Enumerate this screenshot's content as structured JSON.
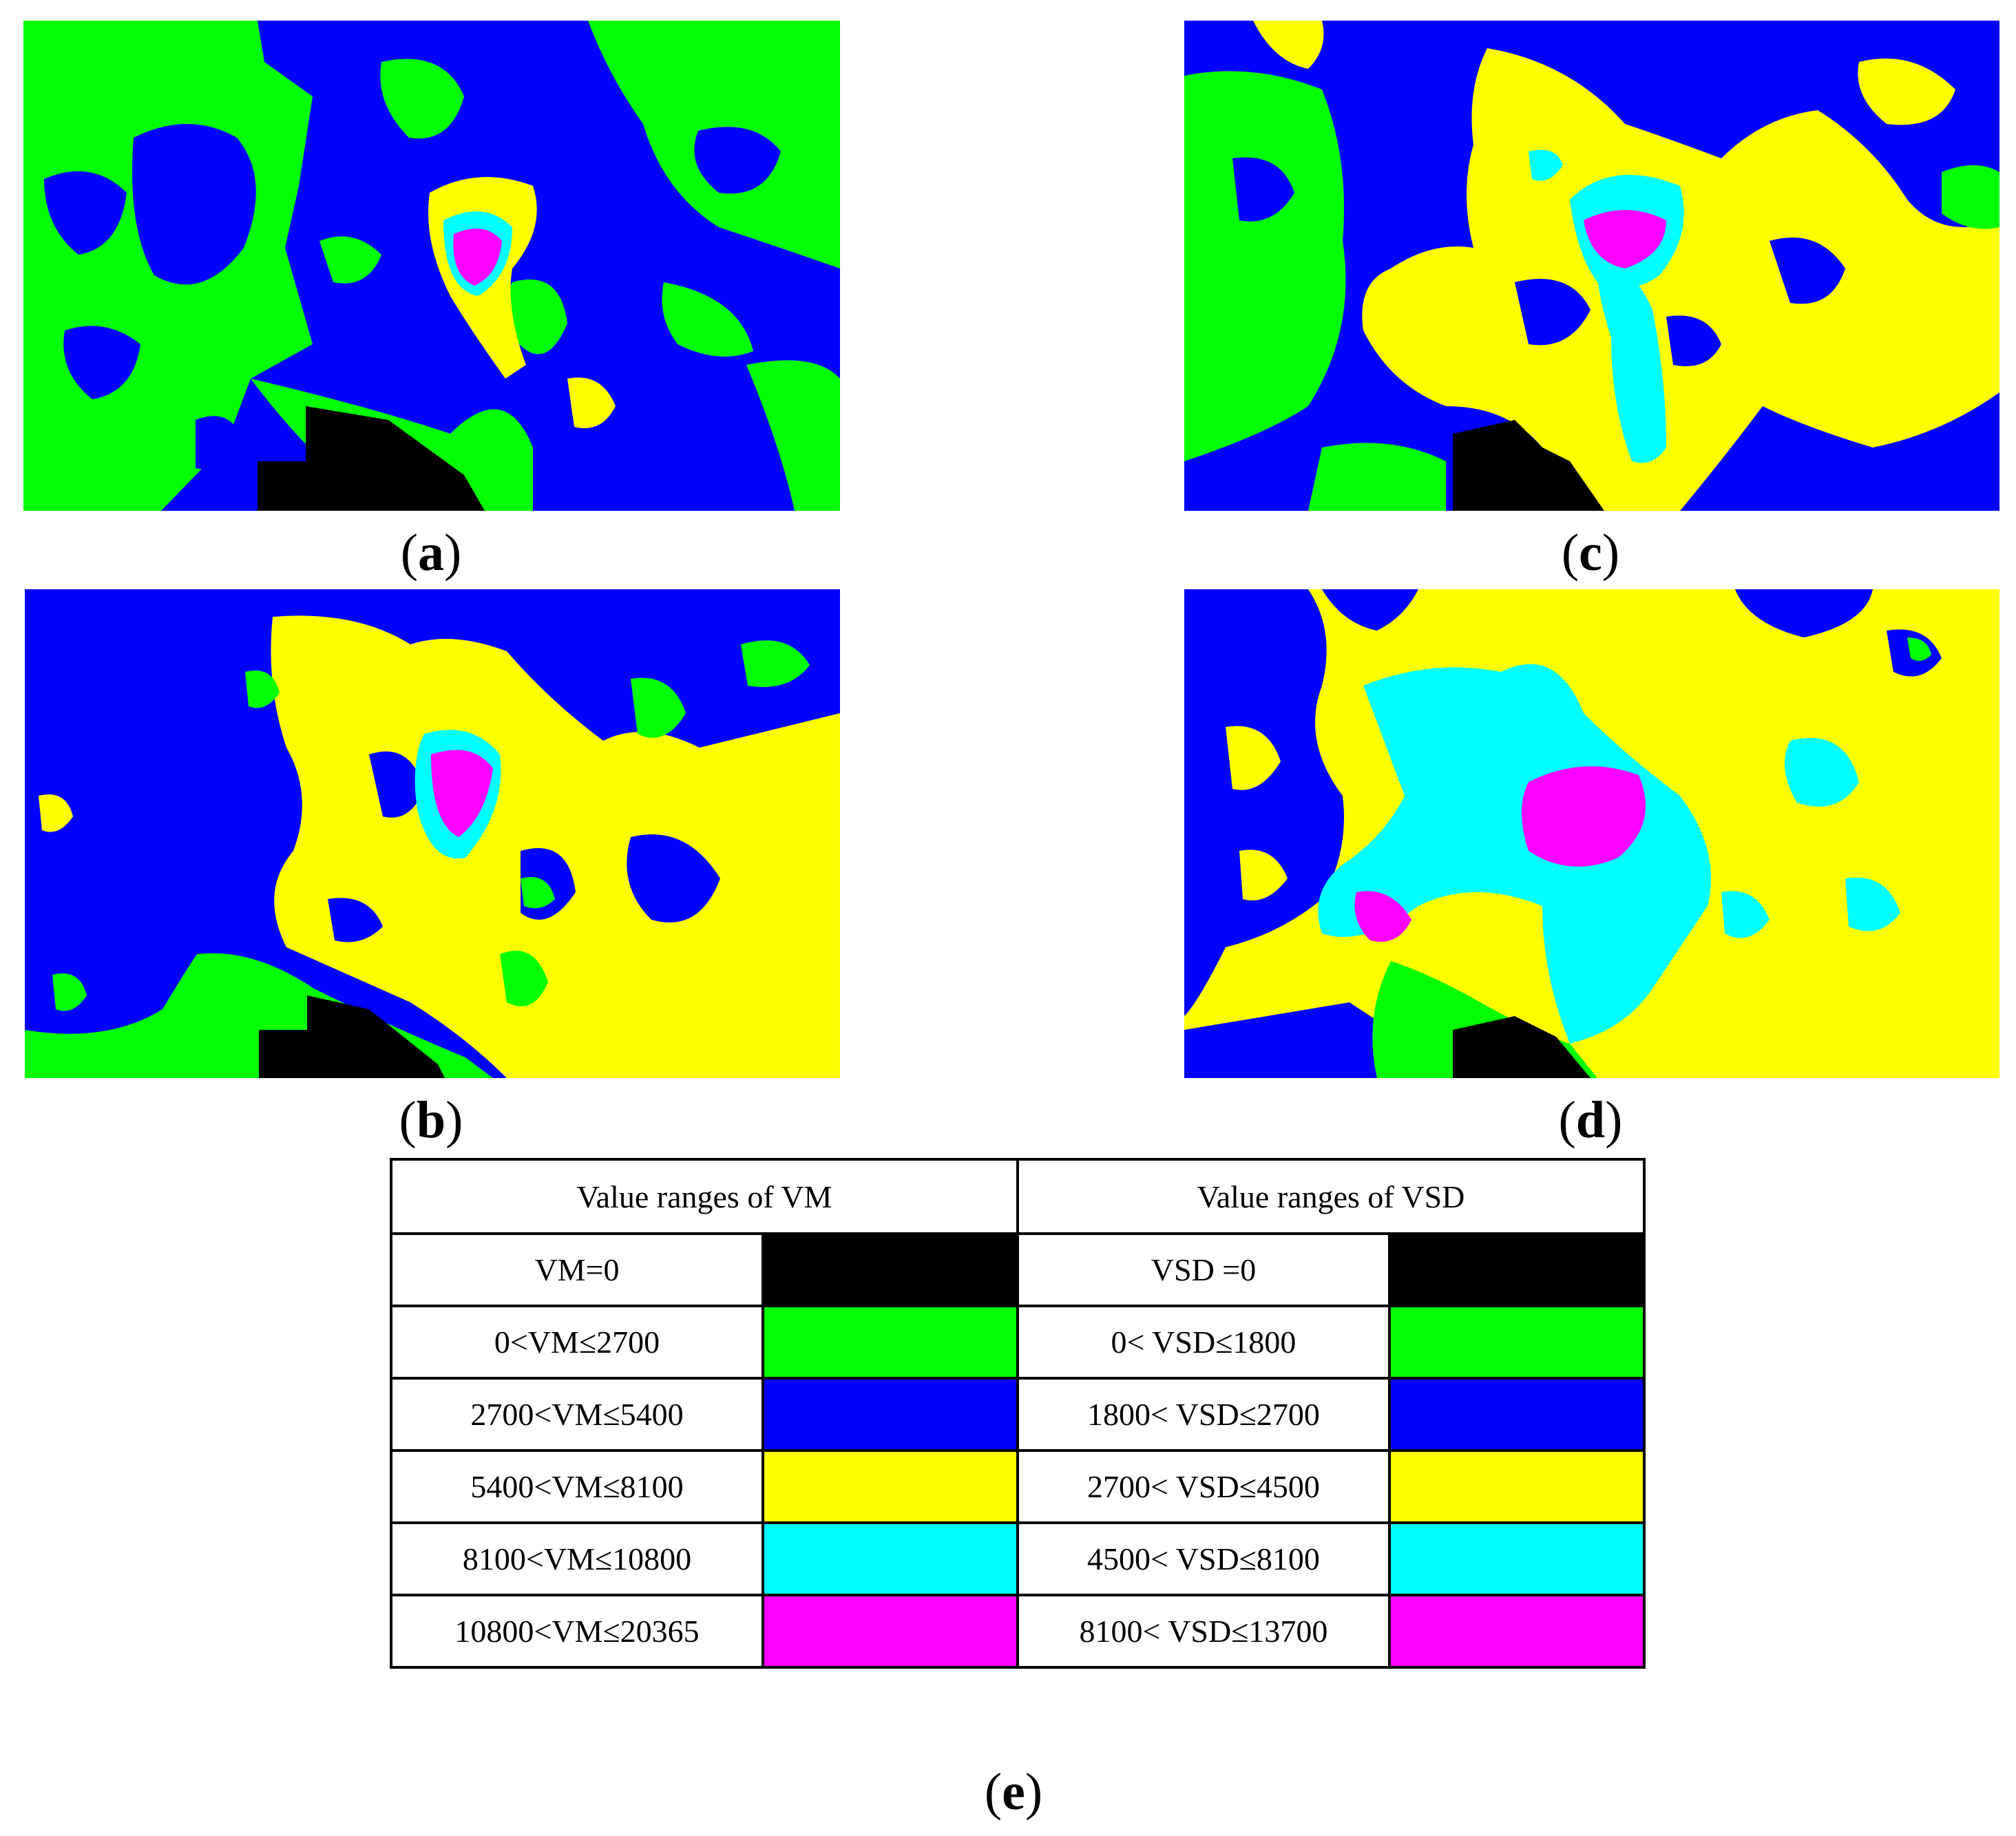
{
  "panels": [
    {
      "id": "a",
      "label": "a"
    },
    {
      "id": "b",
      "label": "b"
    },
    {
      "id": "c",
      "label": "c"
    },
    {
      "id": "d",
      "label": "d"
    },
    {
      "id": "e",
      "label": "e"
    }
  ],
  "colors": {
    "black": "#000000",
    "green": "#00ff00",
    "blue": "#0000ff",
    "yellow": "#ffff00",
    "cyan": "#00ffff",
    "magenta": "#ff00ff"
  },
  "legend": {
    "vm_header": "Value ranges of VM",
    "vsd_header": "Value ranges of VSD",
    "rows": [
      {
        "vm": "VM=0",
        "vsd": "VSD =0",
        "color": "#000000"
      },
      {
        "vm": "0<VM≤2700",
        "vsd": "0< VSD≤1800",
        "color": "#00ff00"
      },
      {
        "vm": "2700<VM≤5400",
        "vsd": "1800< VSD≤2700",
        "color": "#0000ff"
      },
      {
        "vm": "5400<VM≤8100",
        "vsd": "2700< VSD≤4500",
        "color": "#ffff00"
      },
      {
        "vm": "8100<VM≤10800",
        "vsd": "4500< VSD≤8100",
        "color": "#00ffff"
      },
      {
        "vm": "10800<VM≤20365",
        "vsd": "8100< VSD≤13700",
        "color": "#ff00ff"
      }
    ]
  }
}
